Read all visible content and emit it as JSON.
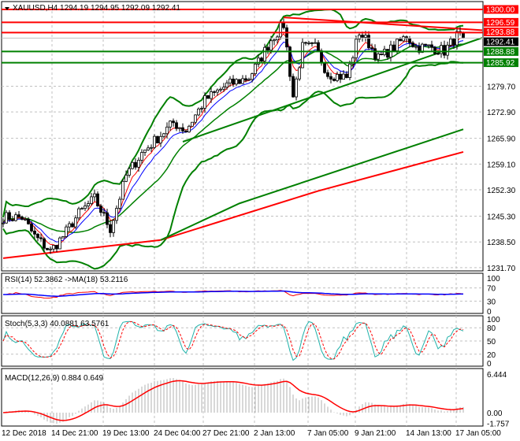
{
  "chart_data": {
    "type": "candlestick",
    "title": "XAUUSD,H4  1294.19 1294.95 1292.09 1292.41",
    "symbol": "XAUUSD",
    "timeframe": "H4",
    "ohlc_last": {
      "open": 1294.19,
      "high": 1294.95,
      "low": 1292.09,
      "close": 1292.41
    },
    "ylim": [
      1231.7,
      1302
    ],
    "y_ticks": [
      "1279.70",
      "1272.90",
      "1265.90",
      "1259.10",
      "1252.30",
      "1245.30",
      "1238.50",
      "1231.70"
    ],
    "x_ticks": [
      "12 Dec 2018",
      "14 Dec 21:00",
      "19 Dec 13:00",
      "24 Dec 04:00",
      "27 Dec 21:00",
      "2 Jan 13:00",
      "7 Jan 05:00",
      "9 Jan 21:00",
      "14 Jan 13:00",
      "17 Jan 05:00"
    ],
    "price_anchors": [
      [
        0,
        1245
      ],
      [
        6,
        1245
      ],
      [
        10,
        1240
      ],
      [
        15,
        1236
      ],
      [
        19,
        1240
      ],
      [
        24,
        1246
      ],
      [
        29,
        1250
      ],
      [
        34,
        1242
      ],
      [
        39,
        1256
      ],
      [
        44,
        1262
      ],
      [
        49,
        1266
      ],
      [
        54,
        1270
      ],
      [
        58,
        1268
      ],
      [
        64,
        1276
      ],
      [
        71,
        1280
      ],
      [
        78,
        1282
      ],
      [
        81,
        1286
      ],
      [
        85,
        1292
      ],
      [
        89,
        1296
      ],
      [
        92,
        1277
      ],
      [
        95,
        1290
      ],
      [
        99,
        1290
      ],
      [
        103,
        1283
      ],
      [
        109,
        1282
      ],
      [
        113,
        1294
      ],
      [
        116,
        1291
      ],
      [
        119,
        1287
      ],
      [
        124,
        1290
      ],
      [
        128,
        1293
      ],
      [
        131,
        1290
      ],
      [
        136,
        1290
      ],
      [
        140,
        1289
      ],
      [
        144,
        1293
      ],
      [
        146,
        1292.41
      ]
    ],
    "levels": [
      {
        "price": 1300.0,
        "label": "1300.00",
        "color": "#ff0000"
      },
      {
        "price": 1296.59,
        "label": "1296.59",
        "color": "#ff0000"
      },
      {
        "price": 1293.88,
        "label": "1293.88",
        "color": "#ff0000"
      },
      {
        "price": 1288.88,
        "label": "1288.88",
        "color": "#008000"
      },
      {
        "price": 1285.92,
        "label": "1285.92",
        "color": "#008000"
      }
    ],
    "current_price": "1292.41",
    "ma_long_red": [
      [
        0,
        1234.2
      ],
      [
        50,
        1239
      ],
      [
        100,
        1252
      ],
      [
        146,
        1262.3
      ]
    ],
    "ma_long_green": [
      [
        50,
        1239
      ],
      [
        75,
        1248.7
      ],
      [
        146,
        1268.3
      ]
    ],
    "trend_red": [
      [
        89,
        1297.9
      ],
      [
        152,
        1294.5
      ]
    ],
    "trend_green": [
      [
        57,
        1265
      ],
      [
        152,
        1292.5
      ]
    ],
    "rsi": {
      "label": "RSI(14) 52.3862  ->MA(18) 53.2116",
      "ticks": [
        "100",
        "70",
        "30",
        "0"
      ]
    },
    "stoch": {
      "label": "Stoch(5,3,3) 40.0881 63.5761",
      "ticks": [
        "100",
        "80",
        "50",
        "20",
        "0"
      ]
    },
    "macd": {
      "label": "MACD(12,26,9) 0.884 0.649",
      "ticks": [
        "6.444",
        "0.00",
        "-1.757"
      ]
    }
  }
}
